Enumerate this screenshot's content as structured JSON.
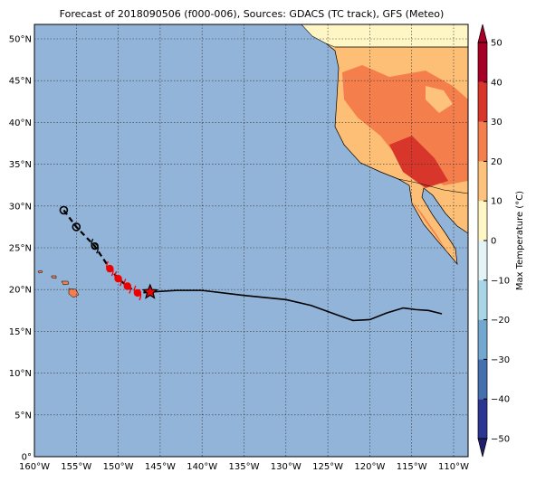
{
  "title": "Forecast of 2018090506 (f000-006), Sources: GDACS (TC track), GFS (Meteo)",
  "map": {
    "lon_ticks": [
      {
        "value": -160,
        "label": "160°W"
      },
      {
        "value": -155,
        "label": "155°W"
      },
      {
        "value": -150,
        "label": "150°W"
      },
      {
        "value": -145,
        "label": "145°W"
      },
      {
        "value": -140,
        "label": "140°W"
      },
      {
        "value": -135,
        "label": "135°W"
      },
      {
        "value": -130,
        "label": "130°W"
      },
      {
        "value": -125,
        "label": "125°W"
      },
      {
        "value": -120,
        "label": "120°W"
      },
      {
        "value": -115,
        "label": "115°W"
      },
      {
        "value": -110,
        "label": "110°W"
      }
    ],
    "lat_ticks": [
      {
        "value": 0,
        "label": "0°"
      },
      {
        "value": 5,
        "label": "5°N"
      },
      {
        "value": 10,
        "label": "10°N"
      },
      {
        "value": 15,
        "label": "15°N"
      },
      {
        "value": 20,
        "label": "20°N"
      },
      {
        "value": 25,
        "label": "25°N"
      },
      {
        "value": 30,
        "label": "30°N"
      },
      {
        "value": 35,
        "label": "35°N"
      },
      {
        "value": 40,
        "label": "40°N"
      },
      {
        "value": 45,
        "label": "45°N"
      },
      {
        "value": 50,
        "label": "50°N"
      }
    ],
    "forecast_track": {
      "lon": [
        -156.5,
        -155,
        -152.8,
        -151,
        -150,
        -148.9,
        -147.7,
        -146.2
      ],
      "lat": [
        29.5,
        27.5,
        25.2,
        22.5,
        21.3,
        20.4,
        19.6,
        19.7
      ]
    },
    "past_track": {
      "lon": [
        -146.2,
        -143,
        -140,
        -135,
        -130,
        -127,
        -124,
        -122,
        -120,
        -118,
        -116,
        -114.5,
        -113,
        -111.4
      ],
      "lat": [
        19.7,
        19.9,
        19.9,
        19.3,
        18.8,
        18.1,
        17,
        16.3,
        16.4,
        17.2,
        17.8,
        17.6,
        17.5,
        17.1
      ]
    }
  },
  "colorbar": {
    "label": "Max Temperature (°C)",
    "ticks": [
      {
        "value": -50,
        "label": "−50"
      },
      {
        "value": -40,
        "label": "−40"
      },
      {
        "value": -30,
        "label": "−30"
      },
      {
        "value": -20,
        "label": "−20"
      },
      {
        "value": -10,
        "label": "−10"
      },
      0,
      10,
      20,
      30,
      40,
      50
    ],
    "colors": [
      "#2b3690",
      "#4470b0",
      "#72a8d0",
      "#a9d6e7",
      "#e3f3f6",
      "#fff6c6",
      "#fdc27c",
      "#f57e4d",
      "#d8362a",
      "#a60026"
    ]
  }
}
